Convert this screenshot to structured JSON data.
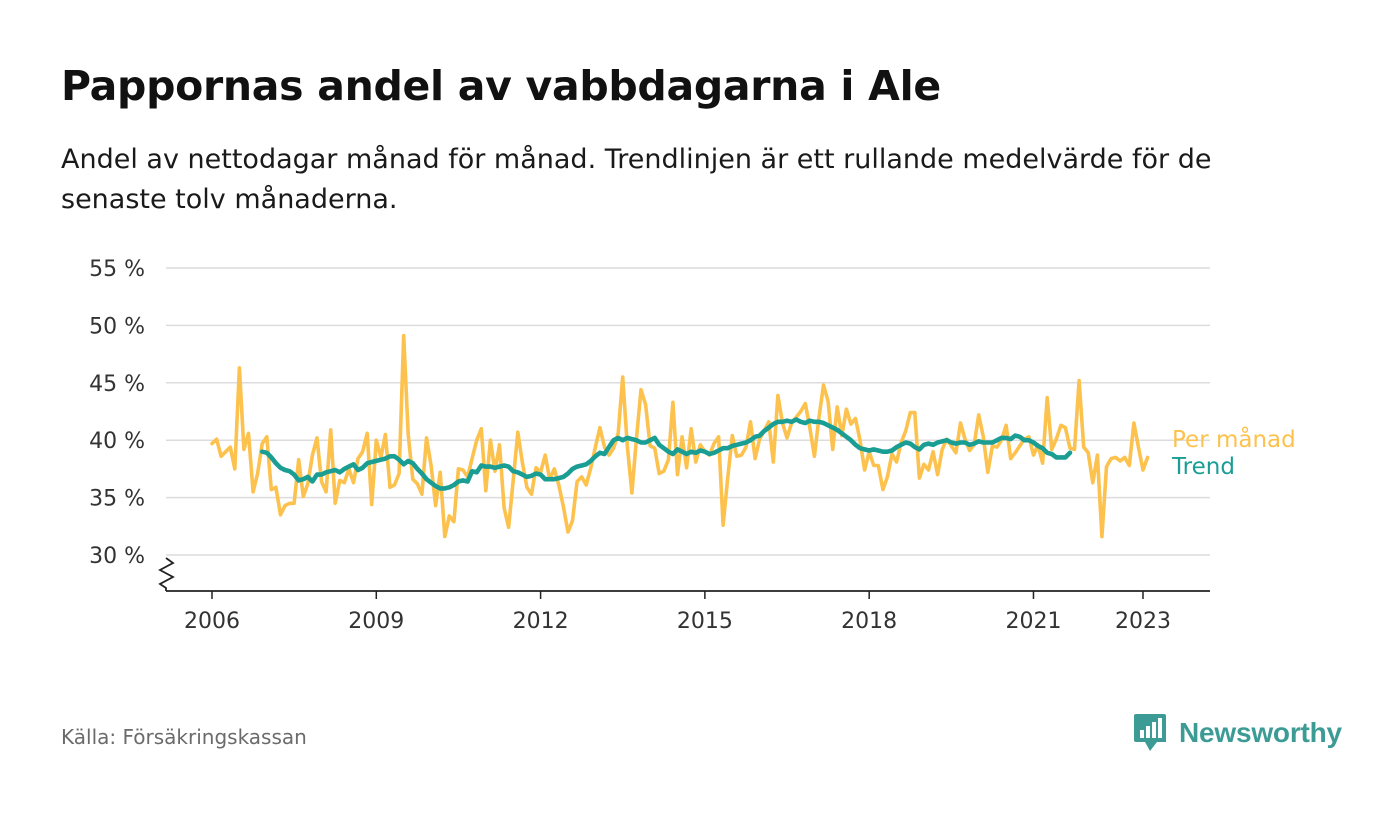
{
  "title": "Pappornas andel av vabbdagarna i Ale",
  "subtitle": "Andel av nettodagar månad för månad. Trendlinjen är ett rullande medelvärde för de senaste tolv månaderna.",
  "source": "Källa: Försäkringskassan",
  "brand": {
    "name": "Newsworthy",
    "icon": "newsworthy-logo-icon",
    "color": "#3c9c95"
  },
  "chart_data": {
    "type": "line",
    "y_ticks": [
      "30 %",
      "35 %",
      "40 %",
      "45 %",
      "50 %",
      "55 %"
    ],
    "y_tick_values": [
      30,
      35,
      40,
      45,
      50,
      55
    ],
    "x_ticks": [
      "2006",
      "2009",
      "2012",
      "2015",
      "2018",
      "2021",
      "2023"
    ],
    "x_tick_values": [
      2006,
      2009,
      2012,
      2015,
      2018,
      2021,
      2023
    ],
    "y_range": [
      27,
      55
    ],
    "x_range": [
      2005.2,
      2024.2
    ],
    "grid": "horizontal",
    "legend_position": "right-end-of-lines",
    "series": [
      {
        "name": "Per månad",
        "color": "#fcc24d",
        "x_start": "2006-01",
        "values": [
          39.7,
          40.1,
          38.6,
          39.0,
          39.4,
          37.5,
          46.3,
          39.2,
          40.6,
          35.5,
          37.1,
          39.7,
          40.3,
          35.7,
          35.9,
          33.5,
          34.3,
          34.5,
          34.5,
          38.3,
          35.1,
          36.2,
          38.7,
          40.2,
          36.4,
          35.5,
          40.9,
          34.5,
          36.5,
          36.3,
          37.5,
          36.3,
          38.4,
          39.0,
          40.6,
          34.4,
          40.0,
          38.5,
          40.5,
          35.9,
          36.1,
          37.1,
          49.1,
          40.5,
          36.6,
          36.2,
          35.3,
          40.2,
          37.8,
          34.3,
          37.2,
          31.6,
          33.4,
          32.9,
          37.5,
          37.4,
          36.8,
          38.4,
          40.0,
          41.0,
          35.6,
          40.0,
          37.3,
          39.6,
          34.1,
          32.4,
          36.5,
          40.7,
          38.1,
          35.9,
          35.3,
          37.6,
          37.2,
          38.7,
          36.6,
          37.5,
          36.1,
          34.2,
          32.0,
          33.0,
          36.4,
          36.8,
          36.1,
          37.6,
          39.4,
          41.1,
          39.4,
          38.7,
          39.3,
          40.6,
          45.5,
          39.5,
          35.4,
          40.1,
          44.4,
          43.1,
          39.5,
          39.3,
          37.1,
          37.3,
          38.3,
          43.3,
          37.0,
          40.3,
          37.6,
          41.0,
          38.1,
          39.6,
          39.0,
          38.7,
          39.7,
          40.3,
          32.6,
          36.7,
          40.4,
          38.6,
          38.7,
          39.4,
          41.6,
          38.4,
          40.1,
          40.8,
          41.6,
          38.1,
          43.9,
          41.5,
          40.2,
          41.5,
          42.0,
          42.5,
          43.2,
          41.1,
          38.6,
          42.0,
          44.8,
          43.4,
          39.2,
          42.9,
          40.4,
          42.7,
          41.4,
          41.9,
          40.0,
          37.4,
          39.0,
          37.8,
          37.8,
          35.7,
          36.8,
          38.8,
          38.1,
          39.8,
          40.8,
          42.4,
          42.4,
          36.7,
          37.9,
          37.4,
          39.0,
          37.0,
          39.2,
          40.1,
          39.5,
          38.9,
          41.5,
          40.1,
          39.1,
          39.6,
          42.2,
          40.3,
          37.2,
          39.5,
          39.4,
          40.0,
          41.3,
          38.4,
          38.9,
          39.5,
          40.1,
          40.3,
          38.7,
          39.6,
          38.0,
          43.7,
          39.2,
          40.1,
          41.3,
          41.1,
          39.3,
          39.2,
          45.2,
          39.4,
          38.9,
          36.3,
          38.7,
          31.6,
          37.7,
          38.4,
          38.5,
          38.2,
          38.5,
          37.8,
          41.5,
          39.4,
          37.4,
          38.5
        ]
      },
      {
        "name": "Trend",
        "color": "#1a9e94",
        "x_start": "2006-12",
        "values": [
          39.0,
          38.9,
          38.5,
          38.0,
          37.6,
          37.4,
          37.3,
          37.0,
          36.5,
          36.6,
          36.8,
          36.4,
          37.0,
          37.0,
          37.2,
          37.3,
          37.4,
          37.2,
          37.5,
          37.7,
          37.9,
          37.4,
          37.6,
          38.0,
          38.1,
          38.2,
          38.3,
          38.4,
          38.6,
          38.6,
          38.3,
          37.9,
          38.2,
          38.0,
          37.5,
          37.1,
          36.6,
          36.3,
          36.0,
          35.8,
          35.8,
          35.9,
          36.1,
          36.4,
          36.5,
          36.4,
          37.3,
          37.2,
          37.8,
          37.7,
          37.7,
          37.6,
          37.7,
          37.8,
          37.7,
          37.3,
          37.2,
          37.0,
          36.8,
          36.9,
          37.1,
          37.0,
          36.6,
          36.6,
          36.6,
          36.7,
          36.8,
          37.1,
          37.5,
          37.7,
          37.8,
          37.9,
          38.2,
          38.6,
          38.9,
          38.8,
          39.4,
          40.0,
          40.2,
          40.0,
          40.2,
          40.1,
          40.0,
          39.8,
          39.8,
          40.0,
          40.2,
          39.6,
          39.3,
          39.0,
          38.8,
          39.2,
          39.0,
          38.8,
          39.0,
          38.9,
          39.1,
          39.0,
          38.8,
          38.9,
          39.1,
          39.3,
          39.3,
          39.5,
          39.6,
          39.7,
          39.8,
          40.0,
          40.3,
          40.4,
          40.8,
          41.1,
          41.4,
          41.6,
          41.6,
          41.7,
          41.6,
          41.8,
          41.6,
          41.5,
          41.7,
          41.6,
          41.6,
          41.5,
          41.3,
          41.1,
          40.9,
          40.6,
          40.3,
          40.0,
          39.6,
          39.3,
          39.2,
          39.1,
          39.2,
          39.1,
          39.0,
          39.0,
          39.1,
          39.4,
          39.6,
          39.8,
          39.7,
          39.4,
          39.2,
          39.6,
          39.7,
          39.6,
          39.8,
          39.9,
          40.0,
          39.8,
          39.7,
          39.8,
          39.8,
          39.6,
          39.7,
          39.9,
          39.8,
          39.8,
          39.8,
          40.0,
          40.2,
          40.2,
          40.1,
          40.4,
          40.3,
          40.0,
          40.0,
          39.8,
          39.5,
          39.3,
          38.9,
          38.8,
          38.5,
          38.5,
          38.5,
          38.9
        ]
      }
    ]
  }
}
